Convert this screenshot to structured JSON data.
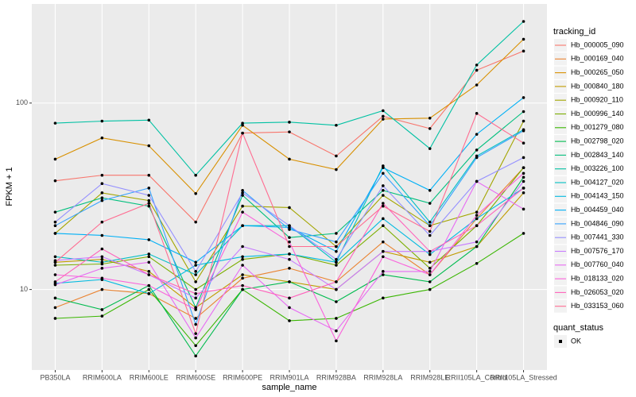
{
  "chart_data": {
    "type": "line",
    "x_label": "sample_name",
    "y_label": "FPKM + 1",
    "log_y": true,
    "grid": true,
    "legend_position": "right",
    "legend_title": "tracking_id",
    "point_legend": {
      "title": "quant_status",
      "labels": [
        "OK"
      ],
      "color": "#000000"
    },
    "categories": [
      "PB350LA",
      "RRIM600LA",
      "RRIM600LE",
      "RRIM600SE",
      "RRIM600PE",
      "RRIM901LA",
      "RRIM928BA",
      "RRIM928LA",
      "RRIM928LE",
      "RRII105LA_Control",
      "RRII105LA_Stressed"
    ],
    "ylim": [
      3.7,
      340
    ],
    "yticks": [
      10,
      100
    ],
    "series": [
      {
        "name": "Hb_000005_090",
        "color": "#F8766D",
        "values": [
          38.3,
          41,
          41,
          23,
          69,
          70,
          52,
          85,
          73,
          150,
          190
        ]
      },
      {
        "name": "Hb_000169_040",
        "color": "#EA8331",
        "values": [
          8,
          10,
          9.5,
          7,
          11.5,
          13,
          11,
          18,
          12,
          24,
          45
        ]
      },
      {
        "name": "Hb_000265_050",
        "color": "#D89000",
        "values": [
          50,
          65,
          59,
          32.7,
          76,
          50,
          44,
          82,
          83,
          125,
          220
        ]
      },
      {
        "name": "Hb_000840_180",
        "color": "#C09B00",
        "values": [
          14,
          14.5,
          12.5,
          8,
          12,
          11,
          10,
          16,
          14,
          17,
          33
        ]
      },
      {
        "name": "Hb_000920_110",
        "color": "#A3A500",
        "values": [
          20,
          33,
          30,
          11,
          28,
          27.5,
          17,
          32,
          22,
          26,
          80
        ]
      },
      {
        "name": "Hb_000996_140",
        "color": "#7CAE00",
        "values": [
          13.5,
          13.7,
          15,
          10,
          14.5,
          15.5,
          13.5,
          22,
          13,
          22,
          45
        ]
      },
      {
        "name": "Hb_001279_080",
        "color": "#39B600",
        "values": [
          7,
          7.2,
          10,
          5,
          10,
          6.8,
          7,
          9,
          10,
          13.8,
          20
        ]
      },
      {
        "name": "Hb_002798_020",
        "color": "#00BB4E",
        "values": [
          9,
          7.8,
          10.5,
          4.4,
          10,
          11,
          8.6,
          12,
          11,
          17,
          40
        ]
      },
      {
        "name": "Hb_002843_140",
        "color": "#00BF7D",
        "values": [
          26,
          31,
          28,
          8,
          32,
          19,
          20,
          34,
          29,
          56,
          90
        ]
      },
      {
        "name": "Hb_003226_100",
        "color": "#00C1A3",
        "values": [
          78,
          80,
          81,
          41,
          78,
          79,
          76,
          91,
          57,
          160,
          274
        ]
      },
      {
        "name": "Hb_004127_020",
        "color": "#00BFC4",
        "values": [
          15,
          14,
          15.5,
          12,
          22,
          22,
          14,
          46,
          23,
          52,
          72
        ]
      },
      {
        "name": "Hb_004143_150",
        "color": "#00BAE0",
        "values": [
          10.8,
          11.3,
          9.5,
          13.5,
          15,
          15.5,
          14,
          24,
          15.4,
          24,
          35
        ]
      },
      {
        "name": "Hb_004459_040",
        "color": "#00B0F6",
        "values": [
          20,
          19.5,
          18.5,
          14,
          22,
          21.5,
          16,
          45,
          34,
          68,
          107
        ]
      },
      {
        "name": "Hb_004846_090",
        "color": "#35A2FF",
        "values": [
          22,
          30,
          35,
          6.5,
          34,
          21,
          18,
          42,
          22,
          51,
          71
        ]
      },
      {
        "name": "Hb_007441_330",
        "color": "#9590FF",
        "values": [
          23,
          37,
          32,
          12.5,
          33,
          22,
          14.5,
          36,
          19.5,
          38,
          51
        ]
      },
      {
        "name": "Hb_007576_170",
        "color": "#C77CFF",
        "values": [
          14.3,
          15,
          12,
          9,
          17,
          14.5,
          10,
          16,
          16,
          18,
          38
        ]
      },
      {
        "name": "Hb_007760_040",
        "color": "#E76BF3",
        "values": [
          10.6,
          13,
          14,
          5.5,
          13.5,
          8,
          6,
          12.5,
          12.5,
          38,
          27
        ]
      },
      {
        "name": "Hb_018133_020",
        "color": "#FA62DB",
        "values": [
          12,
          11.5,
          10.5,
          7.8,
          26,
          18,
          5.3,
          15,
          12,
          25,
          42
        ]
      },
      {
        "name": "Hb_026053_020",
        "color": "#FF62BC",
        "values": [
          11,
          16.5,
          12,
          9.5,
          10.5,
          9,
          11,
          29,
          16,
          22,
          35
        ]
      },
      {
        "name": "Hb_033153_060",
        "color": "#FF6C91",
        "values": [
          14,
          23,
          29,
          5.8,
          69,
          17,
          17,
          28,
          20.5,
          88,
          61
        ]
      }
    ]
  }
}
